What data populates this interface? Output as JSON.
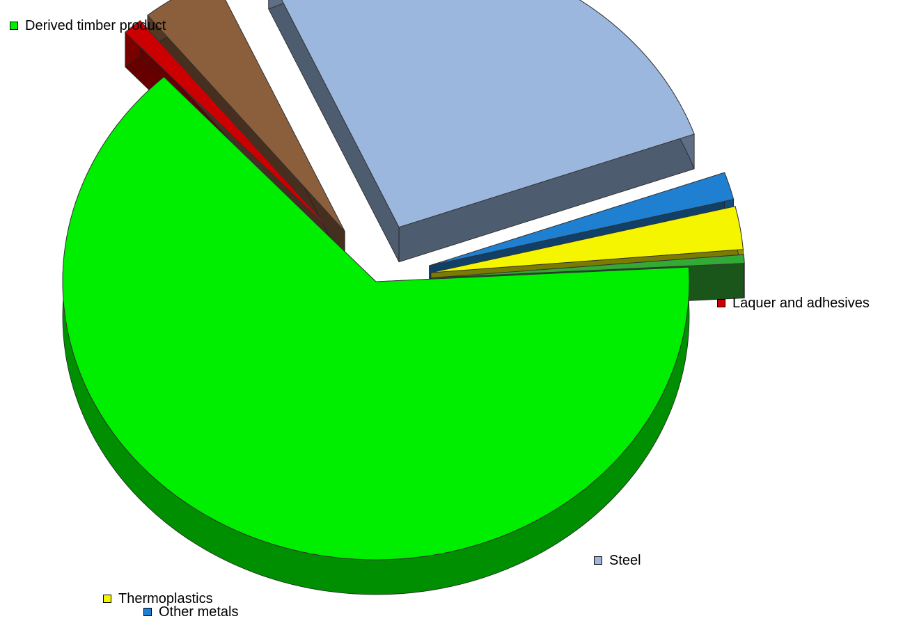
{
  "chart_data": {
    "type": "pie",
    "style": "3d-exploded",
    "title": "",
    "series": [
      {
        "name": "Derived timber product",
        "value": 64.0,
        "color": "#00ee00"
      },
      {
        "name": "Laquer and adhesives",
        "value": 1.0,
        "color": "#cc0000"
      },
      {
        "name": "",
        "value": 4.0,
        "color": "#8b5e3c"
      },
      {
        "name": "Steel",
        "value": 26.4,
        "color": "#9bb7dd"
      },
      {
        "name": "Other metals",
        "value": 1.6,
        "color": "#1f7fd0"
      },
      {
        "name": "Thermoplastics",
        "value": 2.5,
        "color": "#f5f500"
      },
      {
        "name": "",
        "value": 0.5,
        "color": "#33aa33"
      }
    ],
    "legend": [
      {
        "label": "Derived timber product",
        "color": "#00ee00"
      },
      {
        "label": "Laquer and adhesives",
        "color": "#cc0000"
      },
      {
        "label": "Steel",
        "color": "#9bb7dd"
      },
      {
        "label": "Thermoplastics",
        "color": "#f5f500"
      },
      {
        "label": "Other metals",
        "color": "#1f7fd0"
      }
    ],
    "legend_placement": "beside-slices"
  }
}
